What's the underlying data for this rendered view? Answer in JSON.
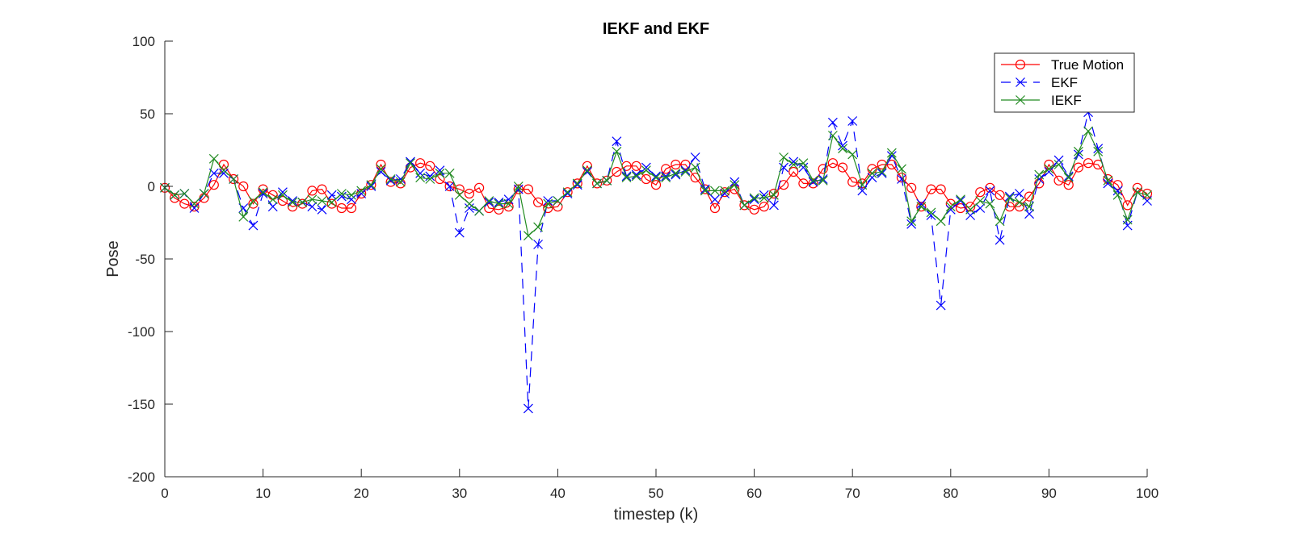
{
  "chart_data": {
    "type": "line",
    "title": "IEKF and EKF",
    "xlabel": "timestep (k)",
    "ylabel": "Pose",
    "xlim": [
      0,
      100
    ],
    "ylim": [
      -200,
      100
    ],
    "xticks": [
      0,
      10,
      20,
      30,
      40,
      50,
      60,
      70,
      80,
      90,
      100
    ],
    "yticks": [
      -200,
      -150,
      -100,
      -50,
      0,
      50,
      100
    ],
    "grid": false,
    "legend_position": "top-right",
    "x": [
      0,
      1,
      2,
      3,
      4,
      5,
      6,
      7,
      8,
      9,
      10,
      11,
      12,
      13,
      14,
      15,
      16,
      17,
      18,
      19,
      20,
      21,
      22,
      23,
      24,
      25,
      26,
      27,
      28,
      29,
      30,
      31,
      32,
      33,
      34,
      35,
      36,
      37,
      38,
      39,
      40,
      41,
      42,
      43,
      44,
      45,
      46,
      47,
      48,
      49,
      50,
      51,
      52,
      53,
      54,
      55,
      56,
      57,
      58,
      59,
      60,
      61,
      62,
      63,
      64,
      65,
      66,
      67,
      68,
      69,
      70,
      71,
      72,
      73,
      74,
      75,
      76,
      77,
      78,
      79,
      80,
      81,
      82,
      83,
      84,
      85,
      86,
      87,
      88,
      89,
      90,
      91,
      92,
      93,
      94,
      95,
      96,
      97,
      98,
      99,
      100
    ],
    "series": [
      {
        "name": "True Motion",
        "color": "#ff0000",
        "marker": "circle",
        "line_style": "solid",
        "values": [
          -1,
          -8,
          -12,
          -14,
          -8,
          1,
          15,
          5,
          0,
          -12,
          -2,
          -6,
          -10,
          -14,
          -12,
          -3,
          -2,
          -12,
          -15,
          -15,
          -5,
          1,
          15,
          3,
          2,
          13,
          16,
          14,
          5,
          0,
          -2,
          -5,
          -1,
          -15,
          -16,
          -14,
          -2,
          -2,
          -11,
          -15,
          -14,
          -4,
          2,
          14,
          2,
          4,
          10,
          14,
          14,
          5,
          1,
          12,
          15,
          15,
          6,
          -2,
          -15,
          -4,
          -2,
          -13,
          -16,
          -14,
          -5,
          1,
          10,
          2,
          2,
          12,
          16,
          13,
          3,
          2,
          12,
          15,
          15,
          6,
          -1,
          -14,
          -2,
          -2,
          -12,
          -15,
          -14,
          -4,
          -1,
          -6,
          -14,
          -14,
          -7,
          2,
          15,
          4,
          1,
          13,
          16,
          15,
          5,
          1,
          -13,
          -1,
          -5
        ]
      },
      {
        "name": "EKF",
        "color": "#0000ff",
        "marker": "x",
        "line_style": "dashed",
        "values": [
          -1,
          -6,
          -5,
          -15,
          -5,
          9,
          9,
          5,
          -15,
          -27,
          -5,
          -14,
          -4,
          -10,
          -11,
          -14,
          -16,
          -6,
          -7,
          -9,
          -5,
          0,
          10,
          4,
          5,
          17,
          9,
          7,
          11,
          0,
          -32,
          -15,
          -17,
          -11,
          -11,
          -9,
          -2,
          -153,
          -40,
          -10,
          -10,
          -5,
          1,
          10,
          2,
          4,
          31,
          7,
          8,
          13,
          7,
          7,
          8,
          11,
          20,
          -2,
          -9,
          -5,
          3,
          -13,
          -9,
          -6,
          -13,
          13,
          17,
          13,
          3,
          5,
          44,
          28,
          45,
          -3,
          6,
          9,
          21,
          5,
          -26,
          -12,
          -20,
          -82,
          -16,
          -10,
          -20,
          -15,
          -3,
          -37,
          -7,
          -5,
          -19,
          5,
          10,
          18,
          7,
          22,
          51,
          26,
          2,
          -3,
          -27,
          -4,
          -10
        ]
      },
      {
        "name": "IEKF",
        "color": "#228b22",
        "marker": "x",
        "line_style": "solid",
        "values": [
          -1,
          -6,
          -5,
          -12,
          -5,
          19,
          11,
          5,
          -21,
          -10,
          -4,
          -9,
          -6,
          -11,
          -11,
          -9,
          -10,
          -11,
          -5,
          -6,
          -3,
          1,
          12,
          5,
          3,
          16,
          6,
          5,
          9,
          9,
          -6,
          -12,
          -17,
          -10,
          -12,
          -12,
          0,
          -34,
          -28,
          -12,
          -10,
          -4,
          2,
          11,
          2,
          4,
          24,
          6,
          7,
          11,
          6,
          6,
          9,
          10,
          13,
          -3,
          -3,
          -3,
          1,
          -13,
          -8,
          -8,
          -6,
          20,
          15,
          16,
          4,
          4,
          35,
          26,
          22,
          1,
          9,
          10,
          23,
          12,
          -24,
          -14,
          -18,
          -24,
          -14,
          -9,
          -16,
          -10,
          -12,
          -24,
          -8,
          -11,
          -14,
          8,
          12,
          15,
          6,
          24,
          38,
          24,
          4,
          -6,
          -23,
          -4,
          -6
        ]
      }
    ]
  }
}
